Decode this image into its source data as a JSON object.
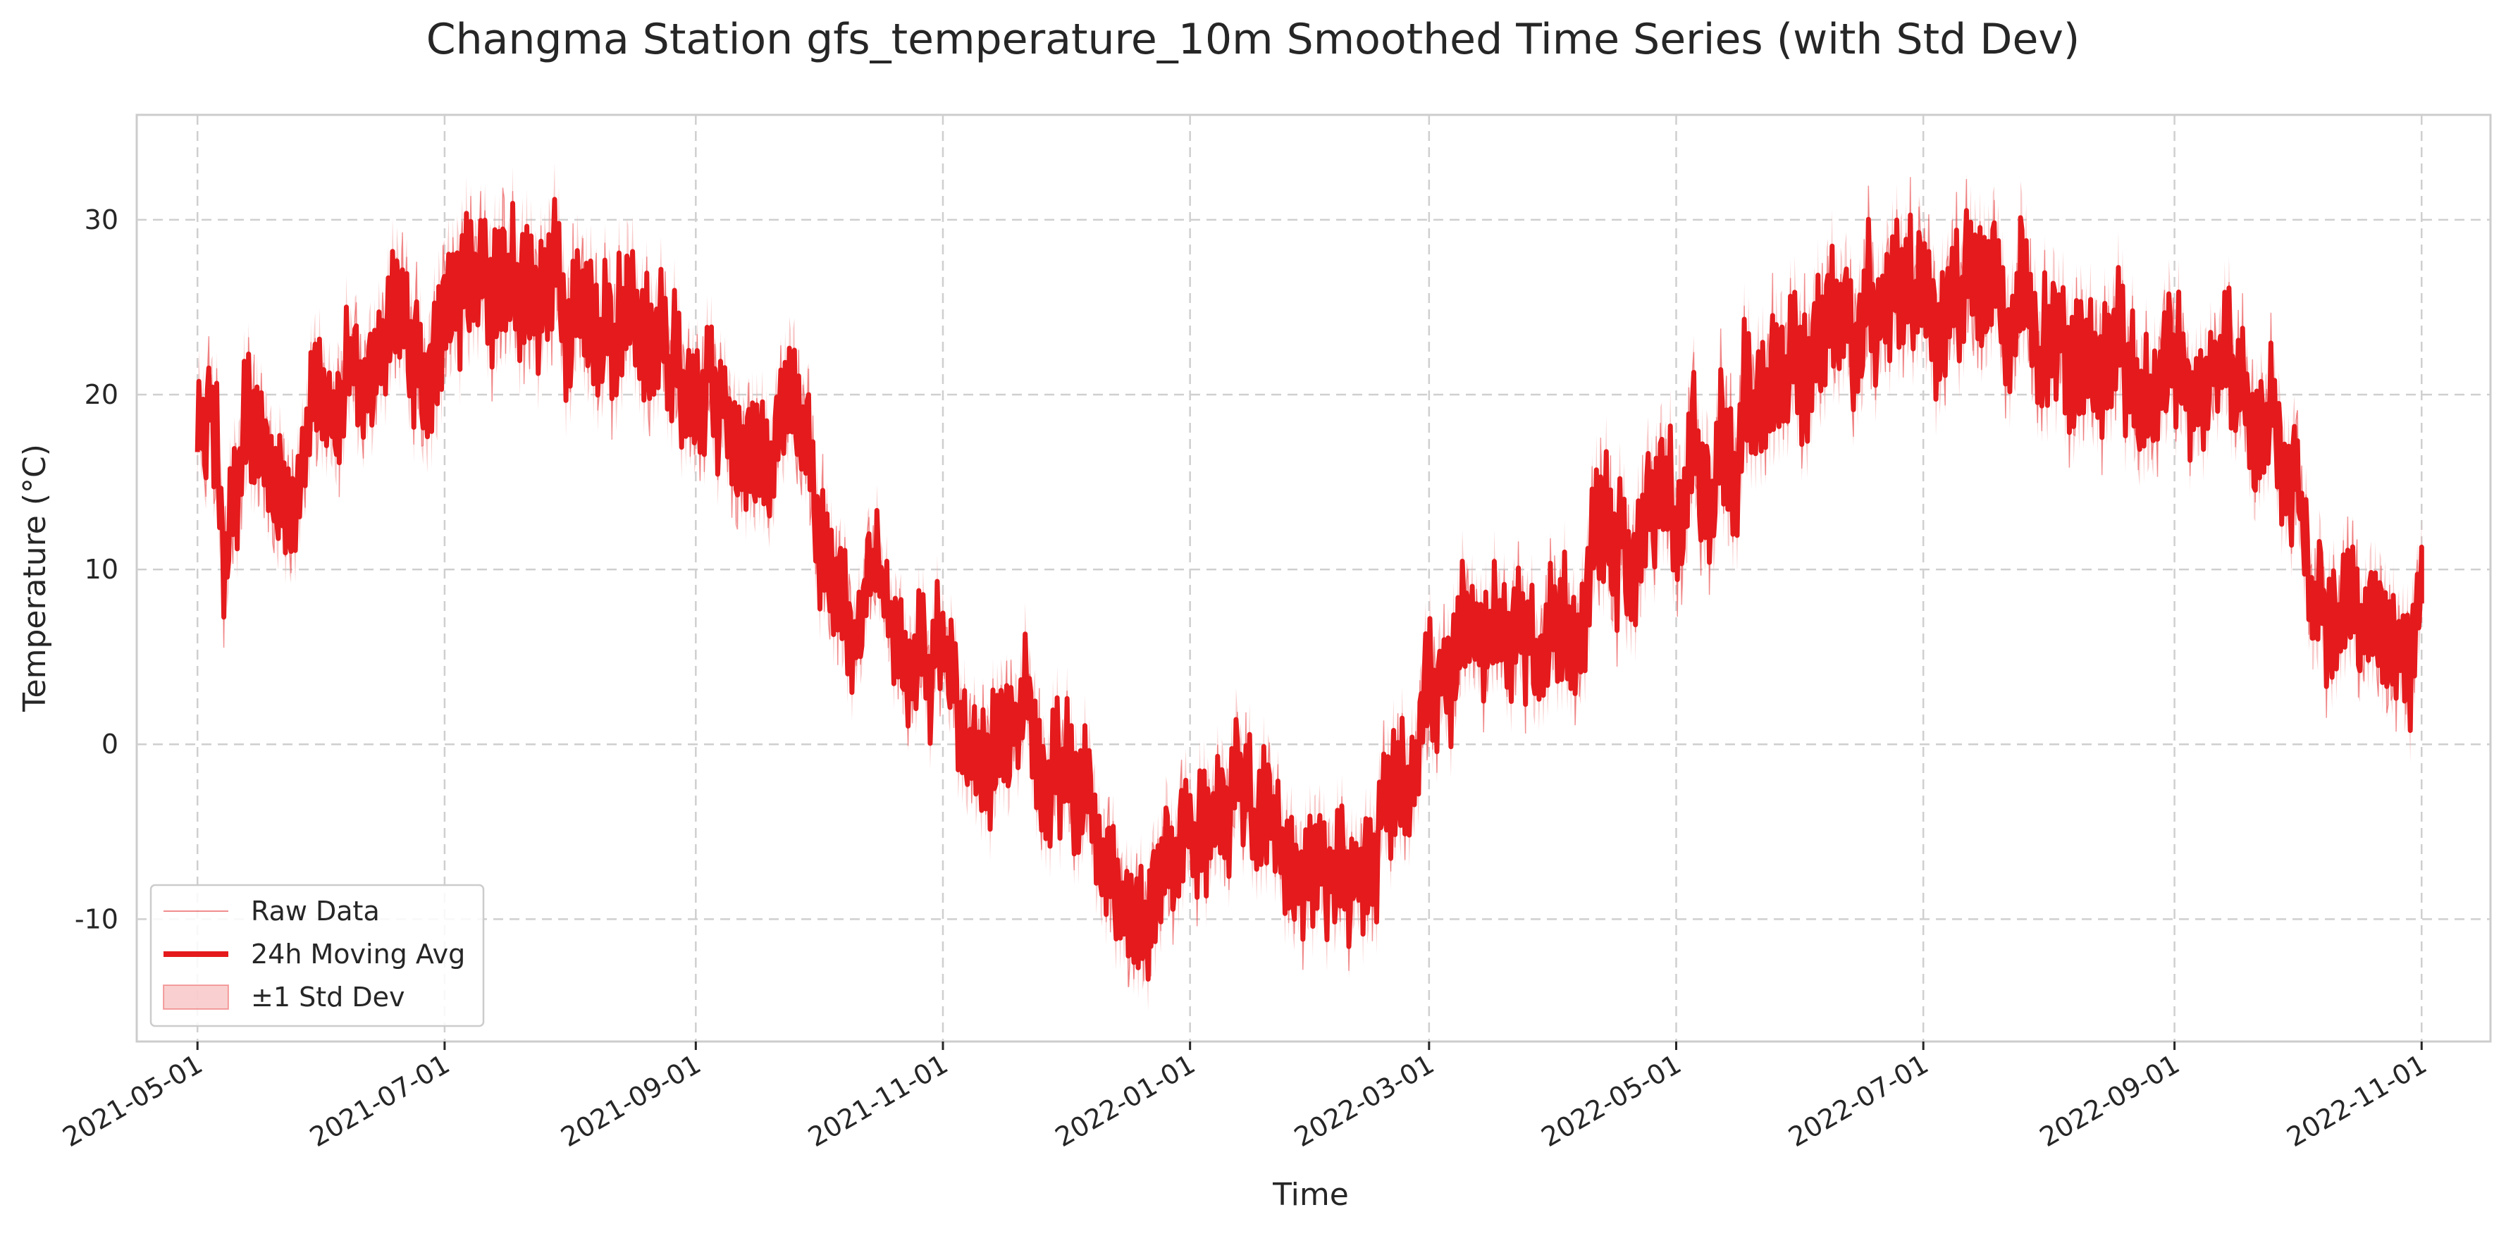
{
  "chart_data": {
    "type": "line",
    "title": "Changma Station gfs_temperature_10m Smoothed Time Series (with Std Dev)",
    "xlabel": "Time",
    "ylabel": "Temperature (°C)",
    "ylim": [
      -17,
      36
    ],
    "xlim": [
      "2021-04-16",
      "2022-11-18"
    ],
    "grid": true,
    "legend_position": "lower-left",
    "y_ticks": [
      "-10",
      "0",
      "10",
      "20",
      "30"
    ],
    "x_ticks": [
      "2021-05-01",
      "2021-07-01",
      "2021-09-01",
      "2021-11-01",
      "2022-01-01",
      "2022-03-01",
      "2022-05-01",
      "2022-07-01",
      "2022-09-01",
      "2022-11-01"
    ],
    "colors": {
      "line": "#e41a1c",
      "band": "#f4a8a8",
      "grid": "#cfcfcf",
      "frame": "#cccccc"
    },
    "series": [
      {
        "name": "Raw Data",
        "style": "thin-line"
      },
      {
        "name": "24h Moving Avg",
        "style": "thick-line"
      },
      {
        "name": "±1 Std Dev",
        "style": "band"
      }
    ],
    "x": [
      "2021-05-01",
      "2021-05-04",
      "2021-05-08",
      "2021-05-15",
      "2021-05-22",
      "2021-05-29",
      "2021-06-05",
      "2021-06-15",
      "2021-06-25",
      "2021-07-05",
      "2021-07-15",
      "2021-07-25",
      "2021-08-05",
      "2021-08-15",
      "2021-08-25",
      "2021-09-05",
      "2021-09-15",
      "2021-09-25",
      "2021-10-05",
      "2021-10-15",
      "2021-10-25",
      "2021-11-03",
      "2021-11-06",
      "2021-11-15",
      "2021-11-25",
      "2021-12-05",
      "2021-12-15",
      "2021-12-22",
      "2021-12-25",
      "2022-01-05",
      "2022-01-15",
      "2022-01-25",
      "2022-02-05",
      "2022-02-15",
      "2022-02-25",
      "2022-03-05",
      "2022-03-15",
      "2022-03-25",
      "2022-04-05",
      "2022-04-15",
      "2022-04-25",
      "2022-05-05",
      "2022-05-15",
      "2022-05-25",
      "2022-06-05",
      "2022-06-15",
      "2022-06-25",
      "2022-07-05",
      "2022-07-15",
      "2022-07-25",
      "2022-08-05",
      "2022-08-15",
      "2022-08-25",
      "2022-09-05",
      "2022-09-15",
      "2022-09-25",
      "2022-10-01",
      "2022-10-05",
      "2022-10-15",
      "2022-10-25",
      "2022-11-01"
    ],
    "values": [
      18,
      20,
      12,
      17,
      15,
      19,
      21,
      22,
      23,
      25,
      26,
      27,
      26,
      24,
      21,
      20,
      18,
      17,
      12,
      8,
      5,
      5,
      -3,
      -1,
      -2,
      -4,
      -6,
      -9,
      -6,
      -4,
      -3,
      -7,
      -8,
      -5,
      0,
      5,
      7,
      6,
      8,
      10,
      11,
      13,
      18,
      20,
      21,
      23,
      25,
      26,
      26,
      25,
      24,
      22,
      21,
      21,
      20,
      18,
      15,
      6,
      8,
      6,
      8
    ],
    "std_dev": [
      3,
      3,
      3,
      3,
      3,
      3,
      3,
      3,
      3.5,
      3.5,
      3.5,
      3.5,
      3.5,
      3.5,
      3,
      3,
      3,
      3,
      3,
      2.5,
      2.5,
      2.5,
      3,
      3,
      3,
      3,
      3,
      3,
      3,
      3,
      3,
      3,
      3,
      3,
      3,
      3,
      3,
      3,
      3,
      3.5,
      3.5,
      3.5,
      3.5,
      3.5,
      3.5,
      3.5,
      3.5,
      3.5,
      3.5,
      3.5,
      3.5,
      3.5,
      3.5,
      3,
      3,
      3,
      3,
      3,
      3,
      3,
      3
    ]
  }
}
